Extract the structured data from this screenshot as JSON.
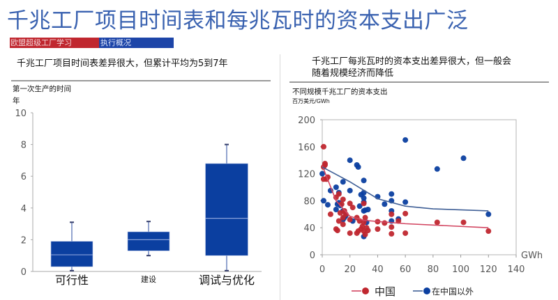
{
  "header": {
    "title": "千兆工厂项目时间表和每兆瓦时的资本支出广泛",
    "tag_red": "欧盟超级工厂学习",
    "tag_blue": "执行概况"
  },
  "left_panel": {
    "subtitle": "千兆工厂项目时间表差异很大，但累计平均为5到7年",
    "chart_title": "第一次生产的时间",
    "unit": "年"
  },
  "right_panel": {
    "subtitle_line1": "千兆工厂每兆瓦时的资本支出差异很大，但一般会",
    "subtitle_line2": "随着规模经济而降低",
    "chart_title": "不同规模千兆工厂的资本支出",
    "unit": "百万美元/GWh"
  },
  "colors": {
    "title": "#3a62b0",
    "box": "#0b3fa0",
    "china": "#c0272f",
    "outside": "#0b3fa0",
    "china_line": "#d24560",
    "outside_line": "#3f5f96"
  },
  "chart_data": [
    {
      "type": "box",
      "title": "第一次生产的时间",
      "ylabel": "年",
      "ylim": [
        0,
        10
      ],
      "yticks": [
        0,
        2,
        4,
        6,
        8,
        10
      ],
      "categories": [
        "可行性",
        "建设",
        "调试与优化"
      ],
      "boxes": [
        {
          "label": "可行性",
          "min": 0.05,
          "q1": 0.3,
          "median": 1.05,
          "q3": 1.9,
          "max": 3.1
        },
        {
          "label": "建设",
          "min": 1.0,
          "q1": 1.3,
          "median": 2.0,
          "q3": 2.5,
          "max": 3.15
        },
        {
          "label": "调试与优化",
          "min": 0.05,
          "q1": 1.0,
          "median": 3.35,
          "q3": 6.8,
          "max": 8.0
        }
      ]
    },
    {
      "type": "scatter",
      "title": "不同规模千兆工厂的资本支出",
      "ylabel": "百万美元/GWh",
      "xlabel": "GWh",
      "xlim": [
        0,
        140
      ],
      "ylim": [
        0,
        200
      ],
      "xticks": [
        0,
        20,
        40,
        60,
        80,
        100,
        120,
        140
      ],
      "yticks": [
        0,
        40,
        80,
        120,
        160,
        200
      ],
      "legend": [
        "中国",
        "在中国以外"
      ],
      "legend_position": "bottom",
      "series": [
        {
          "name": "中国",
          "points": [
            [
              1,
              160
            ],
            [
              1,
              130
            ],
            [
              2,
              135
            ],
            [
              2,
              133
            ],
            [
              1,
              112
            ],
            [
              3,
              112
            ],
            [
              4,
              115
            ],
            [
              6,
              60
            ],
            [
              10,
              38
            ],
            [
              10,
              85
            ],
            [
              11,
              36
            ],
            [
              12,
              90
            ],
            [
              12,
              50
            ],
            [
              13,
              62
            ],
            [
              14,
              75
            ],
            [
              15,
              82
            ],
            [
              15,
              45
            ],
            [
              15,
              55
            ],
            [
              16,
              65
            ],
            [
              17,
              60
            ],
            [
              20,
              32
            ],
            [
              20,
              76
            ],
            [
              20,
              52
            ],
            [
              22,
              70
            ],
            [
              25,
              32
            ],
            [
              25,
              55
            ],
            [
              26,
              35
            ],
            [
              27,
              50
            ],
            [
              28,
              38
            ],
            [
              29,
              42
            ],
            [
              30,
              76
            ],
            [
              30,
              35
            ],
            [
              30,
              48
            ],
            [
              31,
              55
            ],
            [
              31,
              30
            ],
            [
              32,
              40
            ],
            [
              33,
              36
            ],
            [
              40,
              49
            ],
            [
              40,
              38
            ],
            [
              45,
              47
            ],
            [
              50,
              60
            ],
            [
              50,
              41
            ],
            [
              50,
              31
            ],
            [
              55,
              50
            ],
            [
              60,
              61
            ],
            [
              60,
              32
            ],
            [
              83,
              48
            ],
            [
              102,
              48
            ],
            [
              120,
              35
            ]
          ],
          "trend": [
            [
              0,
              132
            ],
            [
              10,
              80
            ],
            [
              20,
              57
            ],
            [
              30,
              51
            ],
            [
              60,
              46
            ],
            [
              120,
              40
            ]
          ]
        },
        {
          "name": "在中国以外",
          "points": [
            [
              0,
              120
            ],
            [
              1,
              80
            ],
            [
              4,
              74
            ],
            [
              6,
              95
            ],
            [
              10,
              100
            ],
            [
              10,
              67
            ],
            [
              11,
              75
            ],
            [
              12,
              92
            ],
            [
              12,
              77
            ],
            [
              13,
              73
            ],
            [
              15,
              108
            ],
            [
              15,
              65
            ],
            [
              15,
              52
            ],
            [
              16,
              55
            ],
            [
              17,
              58
            ],
            [
              20,
              140
            ],
            [
              20,
              95
            ],
            [
              22,
              50
            ],
            [
              25,
              133
            ],
            [
              26,
              130
            ],
            [
              27,
              72
            ],
            [
              28,
              89
            ],
            [
              30,
              110
            ],
            [
              30,
              92
            ],
            [
              30,
              84
            ],
            [
              30,
              78
            ],
            [
              30,
              65
            ],
            [
              30,
              27
            ],
            [
              31,
              66
            ],
            [
              32,
              48
            ],
            [
              33,
              67
            ],
            [
              40,
              86
            ],
            [
              45,
              75
            ],
            [
              50,
              90
            ],
            [
              50,
              80
            ],
            [
              50,
              65
            ],
            [
              50,
              50
            ],
            [
              55,
              53
            ],
            [
              60,
              170
            ],
            [
              60,
              78
            ],
            [
              83,
              127
            ],
            [
              102,
              143
            ],
            [
              120,
              60
            ]
          ],
          "trend": [
            [
              0,
              130
            ],
            [
              20,
              108
            ],
            [
              40,
              83
            ],
            [
              60,
              72
            ],
            [
              80,
              68
            ],
            [
              120,
              65
            ]
          ]
        }
      ]
    }
  ]
}
